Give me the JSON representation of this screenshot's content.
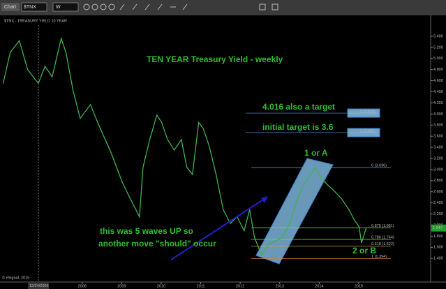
{
  "toolbar": {
    "chart_label": "Chart",
    "symbol": "$TNX",
    "interval": "W"
  },
  "chart_data": {
    "type": "line",
    "title": "TEN YEAR Treasury Yield - weekly",
    "subtitle": "$TNX - TREASURY YIELD 10 YEAR",
    "x": [
      2006.0,
      2006.18,
      2006.41,
      2006.62,
      2006.89,
      2007.06,
      2007.24,
      2007.47,
      2007.59,
      2007.77,
      2007.95,
      2008.21,
      2008.39,
      2008.74,
      2009.01,
      2009.18,
      2009.45,
      2009.54,
      2009.71,
      2009.89,
      2010.01,
      2010.16,
      2010.33,
      2010.51,
      2010.65,
      2010.79,
      2010.95,
      2011.07,
      2011.22,
      2011.39,
      2011.57,
      2011.75,
      2011.92,
      2012.1,
      2012.24,
      2012.36,
      2012.54,
      2012.72,
      2012.89,
      2013.07,
      2013.25,
      2013.42,
      2013.6,
      2013.78,
      2013.9,
      2014.04,
      2014.22,
      2014.4,
      2014.57,
      2014.75,
      2014.89,
      2015.01,
      2015.07,
      2015.19
    ],
    "series": [
      {
        "name": "$TNX",
        "color": "#3fb34f",
        "values": [
          4.55,
          5.11,
          5.32,
          4.8,
          4.55,
          4.86,
          4.67,
          5.36,
          5.11,
          4.42,
          3.92,
          4.17,
          3.85,
          3.29,
          2.78,
          2.53,
          2.15,
          3.04,
          3.54,
          3.98,
          3.85,
          3.54,
          3.35,
          3.54,
          3.04,
          2.91,
          3.85,
          3.73,
          3.41,
          2.91,
          2.28,
          2.03,
          2.15,
          1.9,
          2.28,
          1.78,
          1.46,
          1.65,
          1.71,
          1.78,
          2.03,
          2.41,
          2.72,
          2.91,
          3.04,
          2.85,
          2.72,
          2.6,
          2.47,
          2.28,
          2.09,
          1.97,
          1.68,
          1.947
        ]
      }
    ],
    "last_price": {
      "value": 1.947,
      "label": "1.947"
    },
    "xlim": [
      2005.92,
      2016.82
    ],
    "xticks": [
      2008,
      2009,
      2010,
      2011,
      2012,
      2013,
      2014,
      2015
    ],
    "ylim": [
      1.0,
      5.6
    ],
    "yticks": [
      {
        "value": 1.4,
        "label": "1.400"
      },
      {
        "value": 1.6,
        "label": "1.600"
      },
      {
        "value": 1.8,
        "label": "1.800"
      },
      {
        "value": 2.0,
        "label": "2.000"
      },
      {
        "value": 2.2,
        "label": "2.200"
      },
      {
        "value": 2.4,
        "label": "2.400"
      },
      {
        "value": 2.6,
        "label": "2.600"
      },
      {
        "value": 2.8,
        "label": "2.800"
      },
      {
        "value": 3.0,
        "label": "3.000"
      },
      {
        "value": 3.2,
        "label": "3.200"
      },
      {
        "value": 3.4,
        "label": "3.400"
      },
      {
        "value": 3.6,
        "label": "3.600"
      },
      {
        "value": 3.8,
        "label": "3.800"
      },
      {
        "value": 4.0,
        "label": "4.000"
      },
      {
        "value": 4.2,
        "label": "4.200"
      },
      {
        "value": 4.4,
        "label": "4.400"
      },
      {
        "value": 4.6,
        "label": "4.600"
      },
      {
        "value": 4.8,
        "label": "4.800"
      },
      {
        "value": 5.0,
        "label": "5.000"
      },
      {
        "value": 5.2,
        "label": "5.200"
      },
      {
        "value": 5.4,
        "label": "5.400"
      }
    ],
    "fib_levels": [
      {
        "value": 3.036,
        "label": "0 (3.036)",
        "color": "#5aa0e0"
      },
      {
        "value": 1.951,
        "label": "0.875 (1.951)",
        "color": "#7fcf5f"
      },
      {
        "value": 1.744,
        "label": "0.786 (1.744)",
        "color": "#7fcf5f"
      },
      {
        "value": 1.622,
        "label": "0.618 (1.622)",
        "color": "#e0a040"
      },
      {
        "value": 1.394,
        "label": "1 (1.394)",
        "color": "#e08030"
      }
    ],
    "targets": [
      {
        "value": 4.016,
        "label": "2 (4.016)"
      },
      {
        "value": 3.665,
        "label": "1 (3.665)"
      }
    ],
    "annotations": {
      "target_2": "4.016 also a target",
      "target_1": "initial target is 3.6",
      "wave_a": "1 or A",
      "wave_b": "2 or B",
      "waves_line1": "this was 5 waves UP so",
      "waves_line2": "another move \"should\" occur",
      "cursor_date": "12/24/2006",
      "copyright": "© eSignal, 2015"
    }
  }
}
